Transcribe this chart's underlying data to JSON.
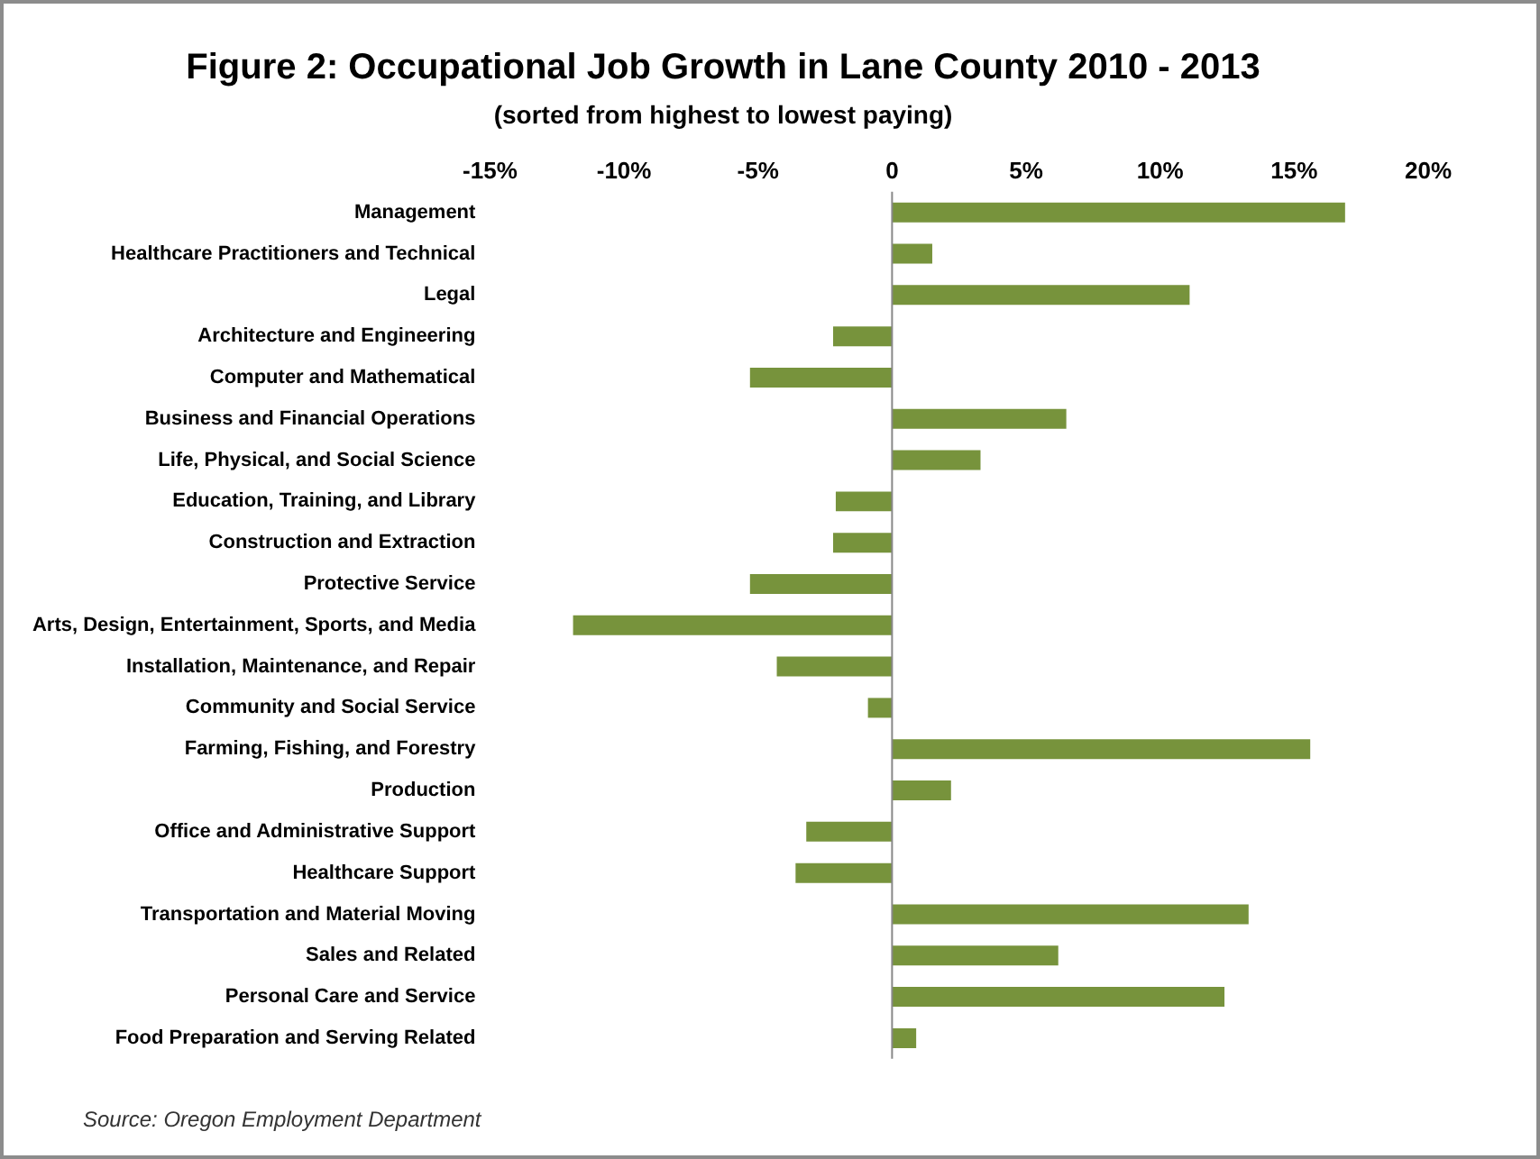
{
  "chart_data": {
    "type": "bar",
    "orientation": "horizontal",
    "title": "Figure 2: Occupational Job Growth in Lane County 2010 - 2013",
    "subtitle": "(sorted from highest to lowest paying)",
    "categories": [
      "Management",
      "Healthcare Practitioners and Technical",
      "Legal",
      "Architecture and Engineering",
      "Computer and Mathematical",
      "Business and Financial Operations",
      "Life, Physical, and Social Science",
      "Education, Training, and Library",
      "Construction and Extraction",
      "Protective Service",
      "Arts, Design, Entertainment, Sports, and Media",
      "Installation, Maintenance, and Repair",
      "Community and Social Service",
      "Farming, Fishing, and Forestry",
      "Production",
      "Office and Administrative Support",
      "Healthcare Support",
      "Transportation and Material Moving",
      "Sales and Related",
      "Personal Care and Service",
      "Food Preparation and Serving Related"
    ],
    "values": [
      16.9,
      1.5,
      11.1,
      -2.2,
      -5.3,
      6.5,
      3.3,
      -2.1,
      -2.2,
      -5.3,
      -11.9,
      -4.3,
      -0.9,
      15.6,
      2.2,
      -3.2,
      -3.6,
      13.3,
      6.2,
      12.4,
      0.9
    ],
    "color": "#77933c",
    "xlim": [
      -15,
      20
    ],
    "xticks": [
      {
        "value": -15,
        "label": "-15%"
      },
      {
        "value": -10,
        "label": "-10%"
      },
      {
        "value": -5,
        "label": "-5%"
      },
      0,
      {
        "value": 5,
        "label": "5%"
      },
      {
        "value": 10,
        "label": "10%"
      },
      {
        "value": 15,
        "label": "15%"
      },
      {
        "value": 20,
        "label": "20%"
      }
    ],
    "legend": false,
    "annotations": [
      "Source: Oregon Employment Department"
    ]
  }
}
